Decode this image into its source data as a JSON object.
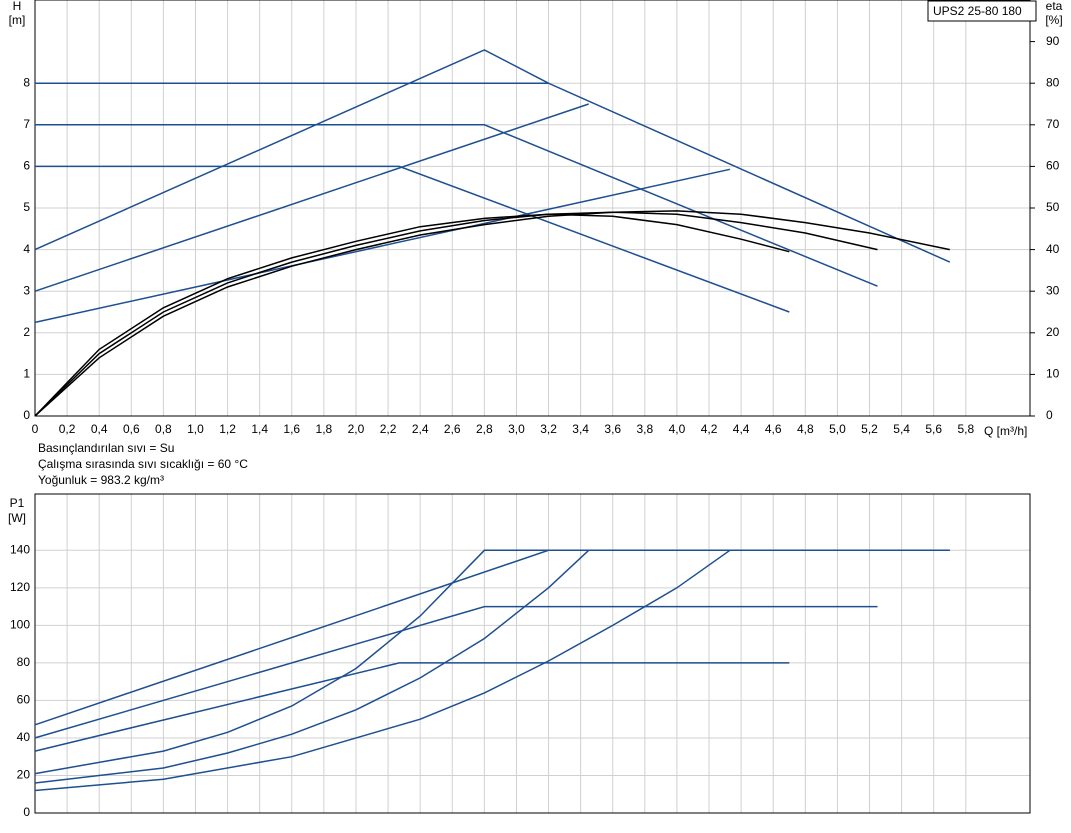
{
  "chart_data": [
    {
      "type": "line",
      "y_label_top": "H",
      "y_label_unit": "[m]",
      "y2_label_top": "eta",
      "y2_label_unit": "[%]",
      "x_label": "Q [m³/h]",
      "legend": "UPS2 25-80 180",
      "legend_corner": "top-right",
      "notes": [
        "Basınçlandırılan sıvı = Su",
        "Çalışma sırasında sıvı sıcaklığı = 60 °C",
        "Yoğunluk = 983.2 kg/m³"
      ],
      "grid": true,
      "xlim": [
        0,
        6.2
      ],
      "xticks": [
        0,
        {
          "value": 0.2,
          "label": "0,2"
        },
        {
          "value": 0.4,
          "label": "0,4"
        },
        {
          "value": 0.6,
          "label": "0,6"
        },
        {
          "value": 0.8,
          "label": "0,8"
        },
        {
          "value": 1.0,
          "label": "1,0"
        },
        {
          "value": 1.2,
          "label": "1,2"
        },
        {
          "value": 1.4,
          "label": "1,4"
        },
        {
          "value": 1.6,
          "label": "1,6"
        },
        {
          "value": 1.8,
          "label": "1,8"
        },
        {
          "value": 2.0,
          "label": "2,0"
        },
        {
          "value": 2.2,
          "label": "2,2"
        },
        {
          "value": 2.4,
          "label": "2,4"
        },
        {
          "value": 2.6,
          "label": "2,6"
        },
        {
          "value": 2.8,
          "label": "2,8"
        },
        {
          "value": 3.0,
          "label": "3,0"
        },
        {
          "value": 3.2,
          "label": "3,2"
        },
        {
          "value": 3.4,
          "label": "3,4"
        },
        {
          "value": 3.6,
          "label": "3,6"
        },
        {
          "value": 3.8,
          "label": "3,8"
        },
        {
          "value": 4.0,
          "label": "4,0"
        },
        {
          "value": 4.2,
          "label": "4,2"
        },
        {
          "value": 4.4,
          "label": "4,4"
        },
        {
          "value": 4.6,
          "label": "4,6"
        },
        {
          "value": 4.8,
          "label": "4,8"
        },
        {
          "value": 5.0,
          "label": "5,0"
        },
        {
          "value": 5.2,
          "label": "5,2"
        },
        {
          "value": 5.4,
          "label": "5,4"
        },
        {
          "value": 5.6,
          "label": "5,6"
        },
        {
          "value": 5.8,
          "label": "5,8"
        }
      ],
      "ylim": [
        0,
        10
      ],
      "yticks": [
        0,
        1,
        2,
        3,
        4,
        5,
        6,
        7,
        8
      ],
      "y2lim": [
        0,
        100
      ],
      "y2ticks": [
        0,
        10,
        20,
        30,
        40,
        50,
        60,
        70,
        80,
        90
      ],
      "series": [
        {
          "color": "#1d4f91",
          "x": [
            0,
            3.2,
            5.7
          ],
          "values": [
            8,
            8,
            3.7
          ]
        },
        {
          "color": "#1d4f91",
          "x": [
            0,
            2.8,
            5.25
          ],
          "values": [
            7,
            7,
            3.12
          ]
        },
        {
          "color": "#1d4f91",
          "x": [
            0,
            2.27,
            4.7
          ],
          "values": [
            6,
            6,
            2.5
          ]
        },
        {
          "color": "#1d4f91",
          "x": [
            0,
            2.8,
            3.2
          ],
          "values": [
            4,
            8.8,
            8
          ]
        },
        {
          "color": "#1d4f91",
          "x": [
            0,
            3.45
          ],
          "values": [
            3,
            7.5
          ]
        },
        {
          "color": "#1d4f91",
          "x": [
            0,
            4.33
          ],
          "values": [
            2.25,
            5.93
          ]
        },
        {
          "color": "#000000",
          "axis": "y2",
          "x": [
            0,
            0.4,
            0.8,
            1.2,
            1.6,
            2.0,
            2.4,
            2.8,
            3.2,
            3.6,
            4.0,
            4.4,
            4.8,
            5.2,
            5.7
          ],
          "values": [
            0,
            14,
            24,
            31,
            36,
            40,
            43.5,
            46,
            48,
            49,
            49.3,
            48.5,
            46.5,
            44,
            40
          ]
        },
        {
          "color": "#000000",
          "axis": "y2",
          "x": [
            0,
            0.4,
            0.8,
            1.2,
            1.6,
            2.0,
            2.4,
            2.8,
            3.2,
            3.6,
            4.0,
            4.4,
            4.8,
            5.25
          ],
          "values": [
            0,
            15,
            25,
            32,
            37,
            41,
            44.5,
            47,
            48.5,
            49,
            48.5,
            46.5,
            44,
            40
          ]
        },
        {
          "color": "#000000",
          "axis": "y2",
          "x": [
            0,
            0.4,
            0.8,
            1.2,
            1.6,
            2.0,
            2.4,
            2.8,
            3.2,
            3.6,
            4.0,
            4.4,
            4.7
          ],
          "values": [
            0,
            16,
            26,
            33,
            38,
            42,
            45.5,
            47.5,
            48.5,
            48,
            46,
            42.5,
            39.5
          ]
        }
      ]
    },
    {
      "type": "line",
      "y_label_top": "P1",
      "y_label_unit": "[W]",
      "grid": true,
      "xlim": [
        0,
        6.2
      ],
      "ylim": [
        0,
        170
      ],
      "yticks": [
        0,
        20,
        40,
        60,
        80,
        100,
        120,
        140
      ],
      "series": [
        {
          "color": "#1d4f91",
          "x": [
            0,
            3.2,
            5.7
          ],
          "values": [
            47,
            140,
            140
          ]
        },
        {
          "color": "#1d4f91",
          "x": [
            0,
            2.8,
            5.25
          ],
          "values": [
            40,
            110,
            110
          ]
        },
        {
          "color": "#1d4f91",
          "x": [
            0,
            2.27,
            4.7
          ],
          "values": [
            33,
            80,
            80
          ]
        },
        {
          "color": "#1d4f91",
          "x": [
            0,
            0.8,
            1.2,
            1.6,
            2.0,
            2.4,
            2.8,
            5.7
          ],
          "values": [
            21,
            33,
            43,
            57,
            77,
            105,
            140,
            140
          ]
        },
        {
          "color": "#1d4f91",
          "x": [
            0,
            0.8,
            1.2,
            1.6,
            2.0,
            2.4,
            2.8,
            3.2,
            3.45
          ],
          "values": [
            16,
            24,
            32,
            42,
            55,
            72,
            93,
            120,
            140
          ]
        },
        {
          "color": "#1d4f91",
          "x": [
            0,
            0.8,
            1.6,
            2.4,
            2.8,
            3.2,
            3.6,
            4.0,
            4.33
          ],
          "values": [
            12,
            18,
            30,
            50,
            64,
            81,
            100,
            120,
            140
          ]
        }
      ]
    }
  ]
}
